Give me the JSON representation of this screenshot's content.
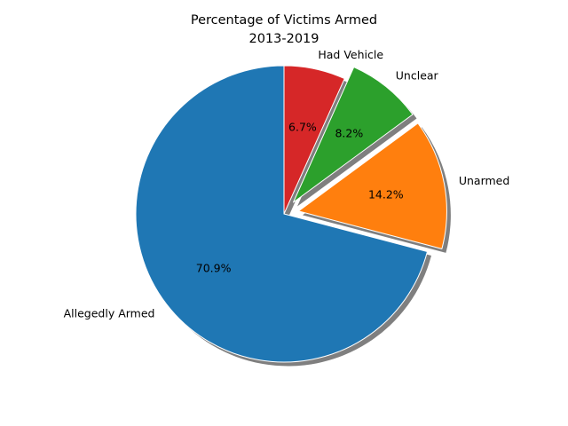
{
  "chart_data": {
    "type": "pie",
    "title_lines": [
      "Percentage of Victims Armed",
      "2013-2019"
    ],
    "categories": [
      "Allegedly Armed",
      "Unarmed",
      "Unclear",
      "Had Vehicle"
    ],
    "values": [
      70.9,
      14.2,
      8.2,
      6.7
    ],
    "value_labels": [
      "70.9%",
      "14.2%",
      "8.2%",
      "6.7%"
    ],
    "colors": [
      "#1f77b4",
      "#ff7f0e",
      "#2ca02c",
      "#d62728"
    ],
    "exploded": [
      0,
      0.1,
      0.1,
      0
    ],
    "start_angle_deg": 90,
    "direction": "counterclockwise",
    "shadow": true,
    "legend": "none"
  }
}
